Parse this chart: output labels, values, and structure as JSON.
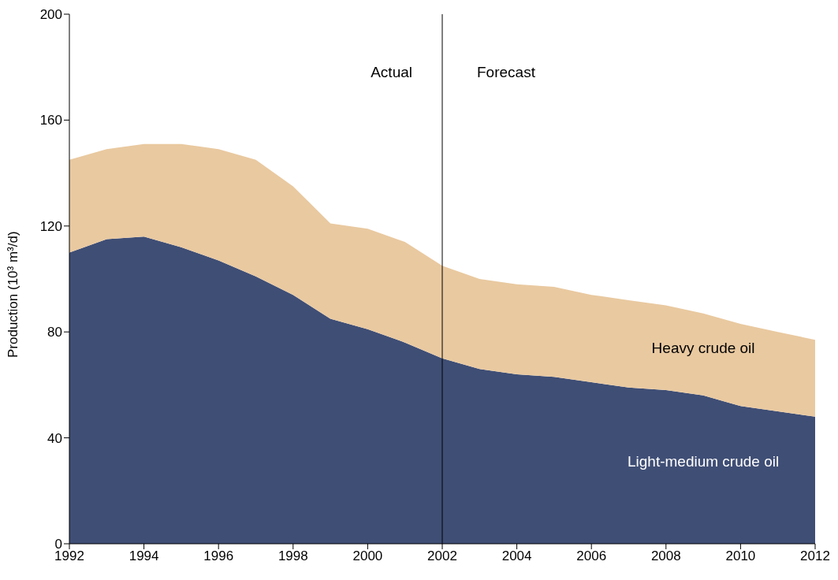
{
  "chart_data": {
    "type": "area",
    "stacked": true,
    "ylabel": "Production (10³ m³/d)",
    "x": [
      1992,
      1993,
      1994,
      1995,
      1996,
      1997,
      1998,
      1999,
      2000,
      2001,
      2002,
      2003,
      2004,
      2005,
      2006,
      2007,
      2008,
      2009,
      2010,
      2011,
      2012
    ],
    "series": [
      {
        "name": "Light-medium crude oil",
        "color": "#3f4e75",
        "values": [
          110,
          115,
          116,
          112,
          107,
          101,
          94,
          85,
          81,
          76,
          70,
          66,
          64,
          63,
          61,
          59,
          58,
          56,
          52,
          50,
          48
        ]
      },
      {
        "name": "Heavy crude oil",
        "color": "#e9c9a0",
        "values": [
          35,
          34,
          35,
          39,
          42,
          44,
          41,
          36,
          38,
          38,
          35,
          34,
          34,
          34,
          33,
          33,
          32,
          31,
          31,
          30,
          29
        ]
      }
    ],
    "xlim": [
      1992,
      2012
    ],
    "xticks": [
      1992,
      1994,
      1996,
      1998,
      2000,
      2002,
      2004,
      2006,
      2008,
      2010,
      2012
    ],
    "ylim": [
      0,
      200
    ],
    "yticks": [
      0,
      40,
      80,
      120,
      160,
      200
    ],
    "ref_lines": [
      {
        "axis": "x",
        "value": 2002,
        "color": "#000000"
      }
    ],
    "annotations": [
      "Actual",
      "Forecast"
    ],
    "grid": false,
    "legend": false
  }
}
